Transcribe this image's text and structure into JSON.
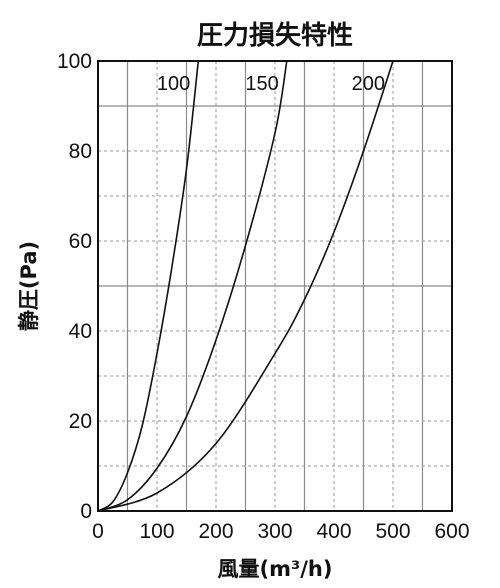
{
  "chart_data": {
    "type": "line",
    "title": "圧力損失特性",
    "xlabel": "風量(m³/h)",
    "ylabel": "静圧(Pa)",
    "xlim": [
      0,
      600
    ],
    "ylim": [
      0,
      100
    ],
    "xticks": [
      0,
      100,
      200,
      300,
      400,
      500,
      600
    ],
    "yticks": [
      0,
      20,
      40,
      60,
      80,
      100
    ],
    "grid": true,
    "series": [
      {
        "name": "100",
        "x": [
          0,
          25,
          50,
          75,
          100,
          125,
          150,
          170
        ],
        "y": [
          0,
          2,
          8.5,
          19,
          35,
          54,
          76,
          100
        ]
      },
      {
        "name": "150",
        "x": [
          0,
          50,
          100,
          150,
          200,
          250,
          300,
          320
        ],
        "y": [
          0,
          2.5,
          9.5,
          21,
          38,
          59,
          84,
          100
        ]
      },
      {
        "name": "200",
        "x": [
          0,
          100,
          200,
          300,
          350,
          400,
          450,
          500
        ],
        "y": [
          0,
          4,
          15,
          35,
          47,
          62,
          80,
          100
        ]
      }
    ]
  }
}
